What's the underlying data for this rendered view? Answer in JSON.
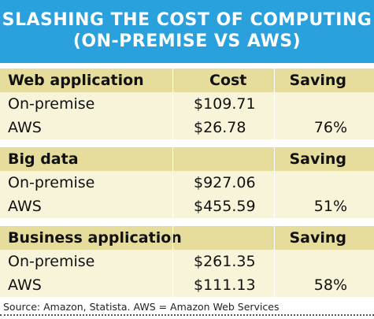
{
  "banner": {
    "line1": "SLASHING THE COST OF COMPUTING",
    "line2": "(ON-PREMISE VS AWS)"
  },
  "colors": {
    "banner_bg": "#2aa1dc",
    "header_row_bg": "#e6dd9c",
    "data_row_bg": "#f8f4d9"
  },
  "sections": [
    {
      "title": "Web application",
      "cost_header": "Cost",
      "saving_header": "Saving",
      "rows": [
        {
          "label": "On-premise",
          "cost": "$109.71",
          "saving": ""
        },
        {
          "label": "AWS",
          "cost": "$26.78",
          "saving": "76%"
        }
      ]
    },
    {
      "title": "Big data",
      "cost_header": "",
      "saving_header": "Saving",
      "rows": [
        {
          "label": "On-premise",
          "cost": "$927.06",
          "saving": ""
        },
        {
          "label": "AWS",
          "cost": "$455.59",
          "saving": "51%"
        }
      ]
    },
    {
      "title": "Business application",
      "cost_header": "",
      "saving_header": "Saving",
      "rows": [
        {
          "label": "On-premise",
          "cost": "$261.35",
          "saving": ""
        },
        {
          "label": "AWS",
          "cost": "$111.13",
          "saving": "58%"
        }
      ]
    }
  ],
  "footer": "Source: Amazon, Statista.  AWS = Amazon Web Services"
}
